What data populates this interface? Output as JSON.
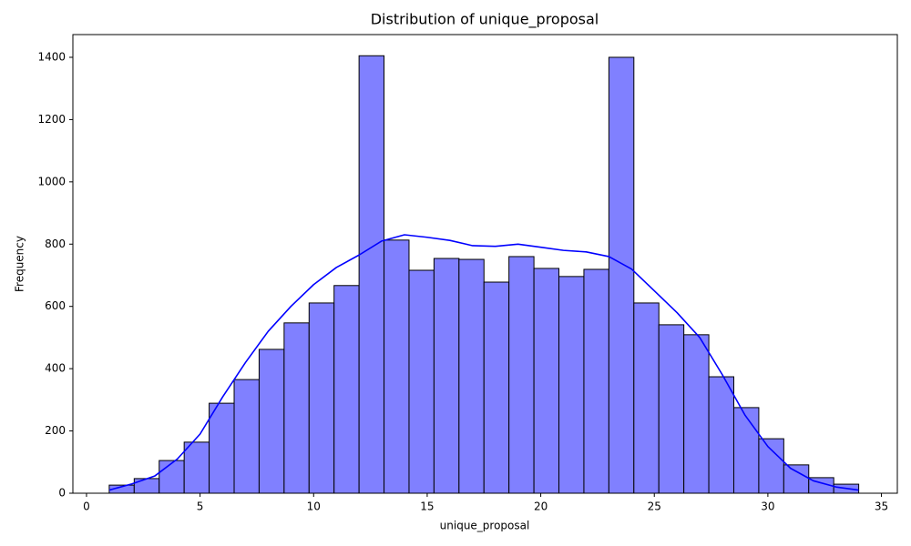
{
  "chart_data": {
    "type": "histogram",
    "title": "Distribution of unique_proposal",
    "x_label": "unique_proposal",
    "y_label": "Frequency",
    "bins": [
      1,
      2.1,
      3.2,
      4.3,
      5.4,
      6.5,
      7.6,
      8.7,
      9.8,
      10.9,
      12,
      13.1,
      14.2,
      15.3,
      16.4,
      17.5,
      18.6,
      19.7,
      20.8,
      21.9,
      23,
      24.1,
      25.2,
      26.3,
      27.4,
      28.5,
      29.6,
      30.7,
      31.8,
      32.9,
      34
    ],
    "values": [
      26,
      47,
      105,
      164,
      289,
      365,
      462,
      547,
      611,
      667,
      1405,
      813,
      716,
      754,
      751,
      678,
      760,
      722,
      696,
      719,
      1400,
      611,
      541,
      509,
      374,
      275,
      175,
      91,
      50,
      29
    ],
    "color": "#8080ff",
    "edge_color": "#000000",
    "kde": {
      "color": "#0000ff",
      "x": [
        1,
        2,
        3,
        4,
        5,
        6,
        7,
        8,
        9,
        10,
        11,
        12,
        13,
        14,
        15,
        16,
        17,
        18,
        19,
        20,
        21,
        22,
        23,
        24,
        25,
        26,
        27,
        28,
        29,
        30,
        31,
        32,
        33,
        34
      ],
      "y": [
        10,
        30,
        55,
        110,
        190,
        310,
        420,
        520,
        600,
        670,
        725,
        765,
        810,
        830,
        822,
        812,
        795,
        793,
        800,
        790,
        780,
        775,
        760,
        720,
        650,
        580,
        500,
        380,
        250,
        150,
        80,
        40,
        20,
        10
      ]
    },
    "xlim": [
      -0.6,
      35.7
    ],
    "ylim": [
      0,
      1473
    ],
    "xticks": [
      0,
      5,
      10,
      15,
      20,
      25,
      30,
      35
    ],
    "yticks": [
      0,
      200,
      400,
      600,
      800,
      1000,
      1200,
      1400
    ]
  }
}
